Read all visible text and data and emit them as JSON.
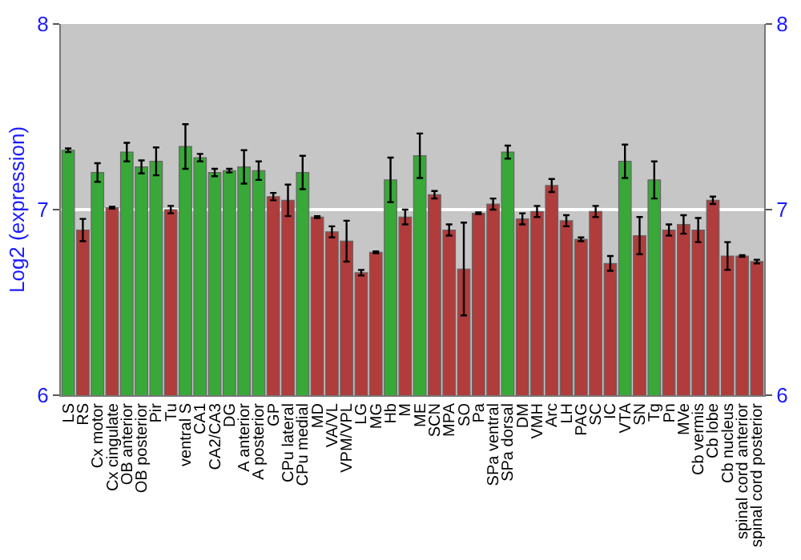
{
  "chart_data": {
    "type": "bar",
    "ylabel": "Log2 (expression)",
    "categories": [
      "LS",
      "RS",
      "Cx motor",
      "Cx cingulate",
      "OB anterior",
      "OB posterior",
      "Pir",
      "Tu",
      "ventral S",
      "CA1",
      "CA2/CA3",
      "DG",
      "A anterior",
      "A posterior",
      "GP",
      "CPu lateral",
      "CPu medial",
      "MD",
      "VA/VL",
      "VPM/VPL",
      "LG",
      "MG",
      "Hb",
      "M",
      "ME",
      "SCN",
      "MPA",
      "SO",
      "Pa",
      "SPa ventral",
      "SPa dorsal",
      "DM",
      "VMH",
      "Arc",
      "LH",
      "PAG",
      "SC",
      "IC",
      "VTA",
      "SN",
      "Tg",
      "Pn",
      "MVe",
      "Cb vermis",
      "Cb lobe",
      "Cb nucleus",
      "spinal cord anterior",
      "spinal cord posterior"
    ],
    "values": [
      7.32,
      6.89,
      7.2,
      7.01,
      7.31,
      7.23,
      7.26,
      7.0,
      7.34,
      7.28,
      7.2,
      7.21,
      7.23,
      7.21,
      7.07,
      7.05,
      7.2,
      6.96,
      6.88,
      6.83,
      6.66,
      6.77,
      7.16,
      6.96,
      7.29,
      7.08,
      6.89,
      6.68,
      6.98,
      7.03,
      7.31,
      6.95,
      6.99,
      7.13,
      6.94,
      6.84,
      6.99,
      6.71,
      7.26,
      6.86,
      7.16,
      6.89,
      6.92,
      6.89,
      7.05,
      6.75,
      6.75,
      6.72
    ],
    "errors": [
      0.01,
      0.06,
      0.05,
      0.005,
      0.05,
      0.035,
      0.075,
      0.02,
      0.12,
      0.02,
      0.02,
      0.01,
      0.09,
      0.05,
      0.02,
      0.085,
      0.09,
      0.005,
      0.03,
      0.11,
      0.015,
      0.005,
      0.12,
      0.04,
      0.12,
      0.02,
      0.03,
      0.25,
      0.005,
      0.03,
      0.035,
      0.03,
      0.03,
      0.035,
      0.03,
      0.01,
      0.03,
      0.04,
      0.09,
      0.1,
      0.1,
      0.03,
      0.05,
      0.065,
      0.02,
      0.075,
      0.005,
      0.01
    ],
    "colors": [
      "#38a838",
      "#b03c3c",
      "#38a838",
      "#b03c3c",
      "#38a838",
      "#38a838",
      "#38a838",
      "#b03c3c",
      "#38a838",
      "#38a838",
      "#38a838",
      "#38a838",
      "#38a838",
      "#38a838",
      "#b03c3c",
      "#b03c3c",
      "#38a838",
      "#b03c3c",
      "#b03c3c",
      "#b03c3c",
      "#b03c3c",
      "#b03c3c",
      "#38a838",
      "#b03c3c",
      "#38a838",
      "#b03c3c",
      "#b03c3c",
      "#b03c3c",
      "#b03c3c",
      "#b03c3c",
      "#38a838",
      "#b03c3c",
      "#b03c3c",
      "#b03c3c",
      "#b03c3c",
      "#b03c3c",
      "#b03c3c",
      "#b03c3c",
      "#38a838",
      "#b03c3c",
      "#38a838",
      "#b03c3c",
      "#b03c3c",
      "#b03c3c",
      "#b03c3c",
      "#b03c3c",
      "#b03c3c",
      "#b03c3c"
    ],
    "ylim": [
      6,
      8
    ],
    "yticks": [
      6,
      7,
      8
    ],
    "y2lim": [
      6,
      8
    ],
    "y2ticks": [
      6,
      7,
      8
    ],
    "grid": "y"
  }
}
